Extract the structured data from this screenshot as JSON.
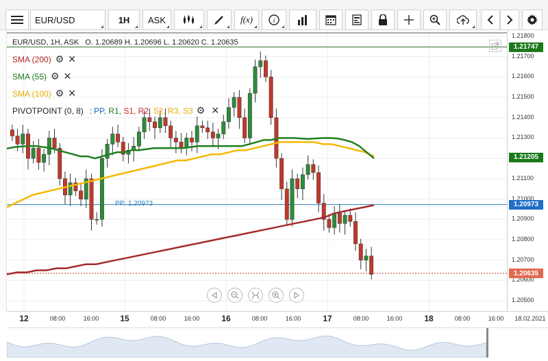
{
  "toolbar": {
    "menu_icon": "hamburger-icon",
    "symbol": "EUR/USD",
    "interval": "1H",
    "price_type": "ASK",
    "buttons": [
      "candles-icon",
      "draw-pen-icon",
      "function-icon",
      "info-icon",
      "bar-chart-icon",
      "calendar-icon",
      "document-icon",
      "lock-icon",
      "crosshair-icon",
      "zoom-icon",
      "cloud-upload-icon",
      "arrow-left-icon",
      "arrow-right-icon",
      "gear-icon"
    ],
    "fx_label": "f(x)"
  },
  "header": {
    "instrument": "EUR/USD, 1H, ASK",
    "ohlc": "O. 1.20689 H. 1.20696 L. 1.20620 C. 1.20635"
  },
  "indicators": [
    {
      "label": "SMA (200)",
      "color": "#b22222"
    },
    {
      "label": "SMA (55)",
      "color": "#1a7a1a"
    },
    {
      "label": "SMA (100)",
      "color": "#f0b000"
    }
  ],
  "pivot": {
    "label": "PIVOTPOINT (0, 8)",
    "sep": ":",
    "parts": [
      {
        "t": "PP,",
        "c": "#1565c0"
      },
      {
        "t": "R1,",
        "c": "#1a7a1a"
      },
      {
        "t": "S1,",
        "c": "#c62828"
      },
      {
        "t": "R2,",
        "c": "#c62828"
      },
      {
        "t": "S2,",
        "c": "#e6a800"
      },
      {
        "t": "R3,",
        "c": "#e6a800"
      },
      {
        "t": "S3",
        "c": "#e6a800"
      }
    ],
    "pp_label": "PP: 1.20973",
    "pp_value": 1.20973
  },
  "price_axis": {
    "min": 1.2045,
    "max": 1.2183,
    "ticks": [
      "1.21800",
      "1.21700",
      "1.21600",
      "1.21500",
      "1.21400",
      "1.21300",
      "1.21200",
      "1.21100",
      "1.21000",
      "1.20900",
      "1.20800",
      "1.20700",
      "1.20600",
      "1.20500"
    ],
    "badges": [
      {
        "text": "1.21747",
        "value": 1.21747,
        "bg": "#1a7a1a"
      },
      {
        "text": "1.21205",
        "value": 1.21205,
        "bg": "#1a7a1a"
      },
      {
        "text": "1.20973",
        "value": 1.20973,
        "bg": "#1e6fc7"
      },
      {
        "text": "1.20635",
        "value": 1.20635,
        "bg": "#e06a50"
      }
    ]
  },
  "time_axis": [
    {
      "t": "12",
      "day": true
    },
    {
      "t": "08:00"
    },
    {
      "t": "16:00"
    },
    {
      "t": "15",
      "day": true
    },
    {
      "t": "08:00"
    },
    {
      "t": "16:00"
    },
    {
      "t": "16",
      "day": true
    },
    {
      "t": "08:00"
    },
    {
      "t": "16:00"
    },
    {
      "t": "17",
      "day": true
    },
    {
      "t": "08:00"
    },
    {
      "t": "16:00"
    },
    {
      "t": "18",
      "day": true
    },
    {
      "t": "08:00"
    },
    {
      "t": "16:00"
    },
    {
      "t": "18.02.2021"
    }
  ],
  "zoom_controls": [
    "prev-icon",
    "zoom-out-icon",
    "fit-icon",
    "zoom-in-icon",
    "next-icon"
  ],
  "colors": {
    "up": "#2e8b3a",
    "down": "#c0392b",
    "sma200": "#a52a2a",
    "sma55": "#1f7f1f",
    "sma100": "#f5b800",
    "pp": "#2a7fb8",
    "last": "#c0392b"
  },
  "chart_data": {
    "type": "candlestick",
    "symbol": "EUR/USD",
    "interval": "1H",
    "close_series": [
      1.2131,
      1.2127,
      1.2132,
      1.212,
      1.2125,
      1.2118,
      1.2122,
      1.213,
      1.2125,
      1.211,
      1.2102,
      1.2108,
      1.2104,
      1.21,
      1.211,
      1.209,
      1.209,
      1.212,
      1.2127,
      1.2132,
      1.2128,
      1.2122,
      1.2124,
      1.2126,
      1.2133,
      1.214,
      1.2138,
      1.2135,
      1.214,
      1.2136,
      1.213,
      1.2128,
      1.2125,
      1.213,
      1.2128,
      1.2136,
      1.2135,
      1.2133,
      1.213,
      1.2132,
      1.2138,
      1.2145,
      1.215,
      1.214,
      1.213,
      1.2152,
      1.2165,
      1.2168,
      1.216,
      1.214,
      1.212,
      1.2105,
      1.209,
      1.211,
      1.2105,
      1.2112,
      1.2117,
      1.2113,
      1.2098,
      1.209,
      1.2086,
      1.2093,
      1.2088,
      1.2092,
      1.2089,
      1.2078,
      1.207,
      1.2072,
      1.2063
    ],
    "sma55": [
      1.21248,
      1.21255,
      1.21258,
      1.2126,
      1.2126,
      1.21255,
      1.2125,
      1.2124,
      1.2123,
      1.2122,
      1.2121,
      1.2121,
      1.212,
      1.2121,
      1.2122,
      1.2123,
      1.2123,
      1.2124,
      1.2124,
      1.21245,
      1.2125,
      1.2125,
      1.2125,
      1.2125,
      1.2125,
      1.21255,
      1.2126,
      1.2126,
      1.2126,
      1.2126,
      1.2126,
      1.2126,
      1.2126,
      1.2127,
      1.2128,
      1.2129,
      1.2129,
      1.213,
      1.213,
      1.213,
      1.21298,
      1.21295,
      1.21298,
      1.213,
      1.213,
      1.21298,
      1.2129,
      1.2128,
      1.2126,
      1.2123,
      1.212
    ],
    "sma100": [
      1.2096,
      1.2098,
      1.21,
      1.2102,
      1.2103,
      1.2104,
      1.2105,
      1.2106,
      1.2107,
      1.2108,
      1.2109,
      1.211,
      1.2111,
      1.2112,
      1.2113,
      1.2114,
      1.2115,
      1.2116,
      1.2117,
      1.2118,
      1.2119,
      1.2119,
      1.212,
      1.2121,
      1.2122,
      1.2122,
      1.2123,
      1.2124,
      1.2124,
      1.2125,
      1.2126,
      1.2127,
      1.2128,
      1.2128,
      1.2128,
      1.2128,
      1.2128,
      1.2127,
      1.2127,
      1.2126,
      1.2125,
      1.2124,
      1.2123,
      1.2121
    ],
    "sma200": [
      1.2063,
      1.2064,
      1.2064,
      1.2065,
      1.2065,
      1.2066,
      1.2066,
      1.2067,
      1.2068,
      1.2068,
      1.2069,
      1.207,
      1.2071,
      1.2072,
      1.2073,
      1.2074,
      1.2075,
      1.2076,
      1.2077,
      1.2078,
      1.2079,
      1.208,
      1.2081,
      1.2082,
      1.2083,
      1.2084,
      1.2085,
      1.2086,
      1.2087,
      1.2088,
      1.2089,
      1.209,
      1.2091,
      1.2093,
      1.2094,
      1.2095,
      1.2096,
      1.2097
    ],
    "last_price": 1.20635,
    "ylim": [
      1.2045,
      1.2183
    ]
  }
}
